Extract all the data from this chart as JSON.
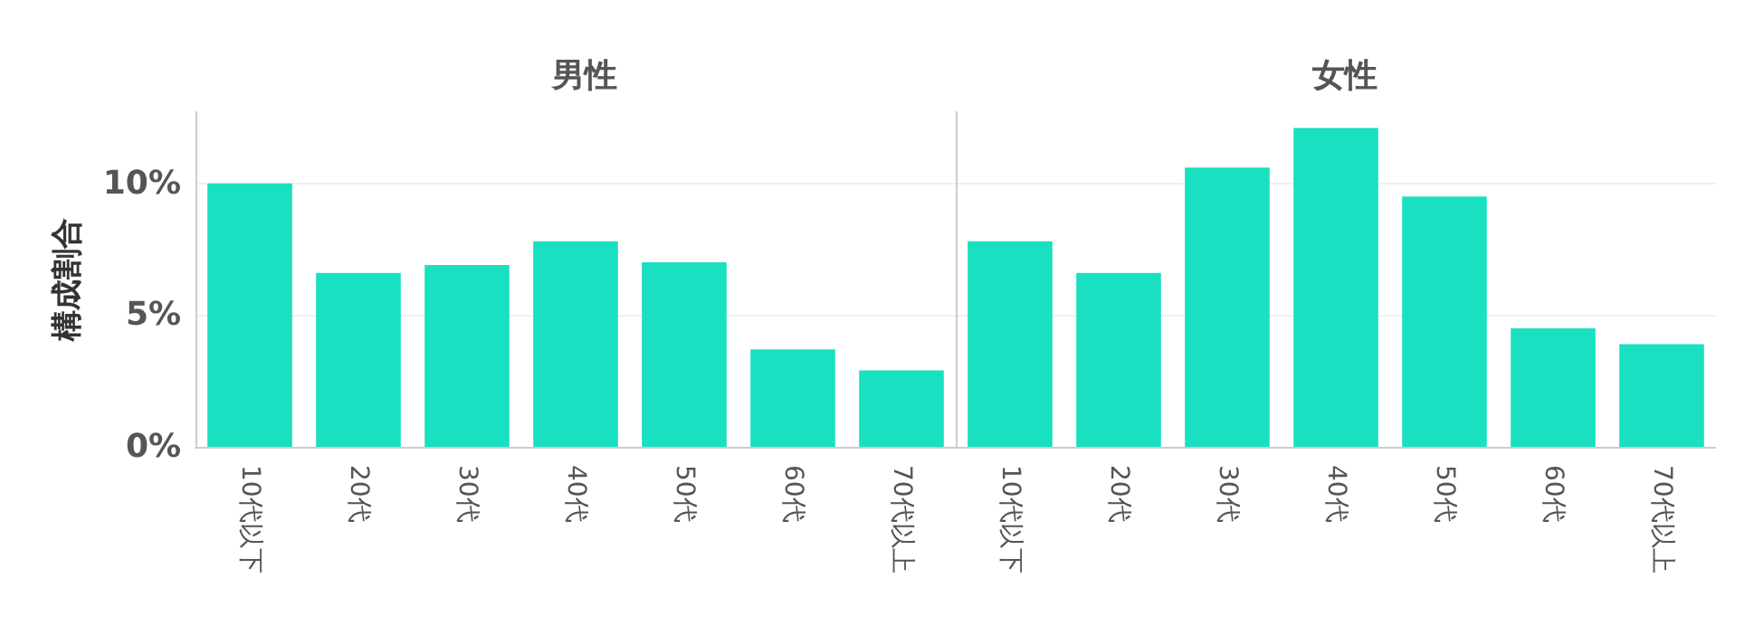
{
  "chart_data": [
    {
      "type": "bar",
      "title": "男性",
      "ylabel": "構成割合",
      "categories": [
        "10代以下",
        "20代",
        "30代",
        "40代",
        "50代",
        "60代",
        "70代以上"
      ],
      "values": [
        10.0,
        6.6,
        6.9,
        7.8,
        7.0,
        3.7,
        2.9
      ],
      "color": "#19e0c1",
      "ylim": [
        0,
        12.7
      ],
      "yticks": [
        {
          "value": 0,
          "label": "0%"
        },
        {
          "value": 5,
          "label": "5%"
        },
        {
          "value": 10,
          "label": "10%"
        }
      ],
      "grid": "y"
    },
    {
      "type": "bar",
      "title": "女性",
      "categories": [
        "10代以下",
        "20代",
        "30代",
        "40代",
        "50代",
        "60代",
        "70代以上"
      ],
      "values": [
        7.8,
        6.6,
        10.6,
        12.1,
        9.5,
        4.5,
        3.9
      ],
      "color": "#19e0c1",
      "ylim": [
        0,
        12.7
      ],
      "yticks": [
        {
          "value": 0,
          "label": null
        },
        {
          "value": 5,
          "label": null
        },
        {
          "value": 10,
          "label": null
        }
      ],
      "grid": "y",
      "tick_labels": "x"
    }
  ]
}
